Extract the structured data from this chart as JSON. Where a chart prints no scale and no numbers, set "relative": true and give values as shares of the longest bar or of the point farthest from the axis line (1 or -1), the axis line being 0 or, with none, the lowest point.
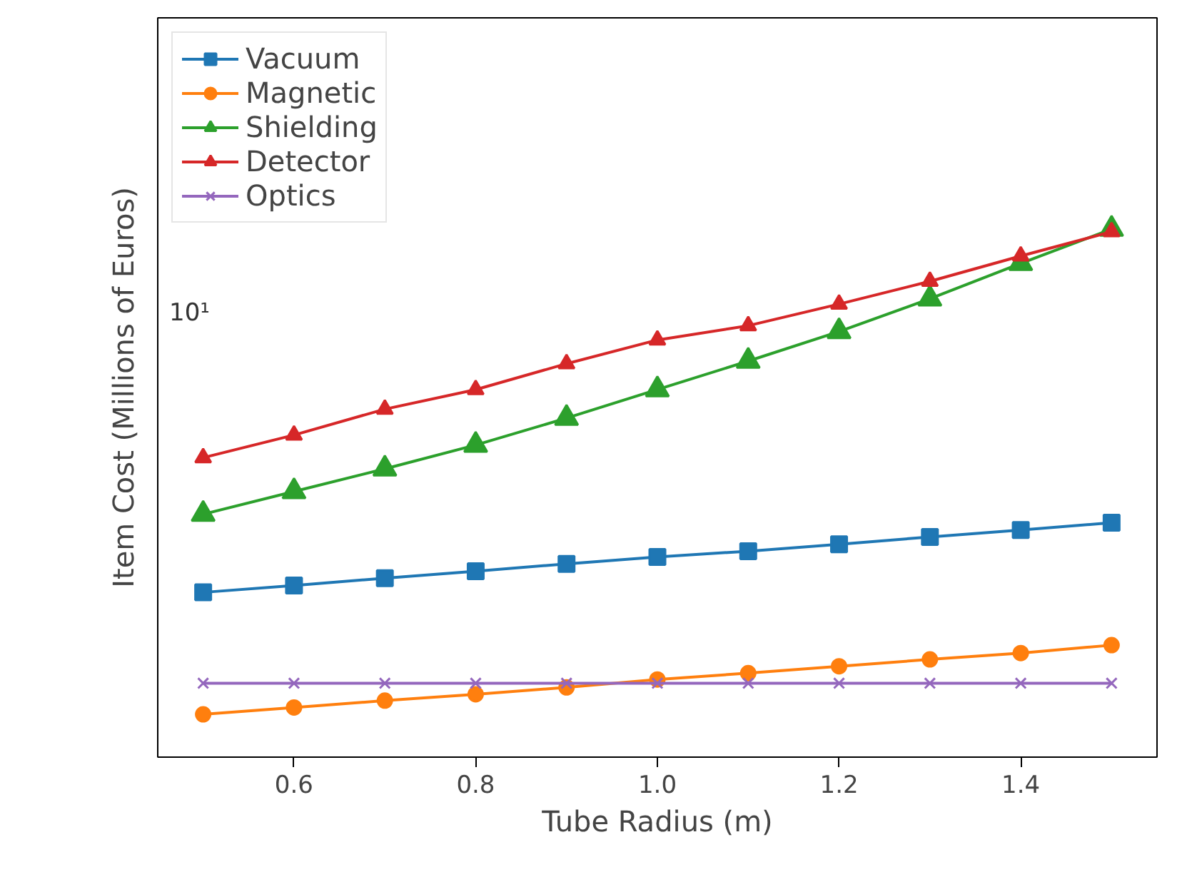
{
  "chart_data": {
    "type": "line",
    "xlabel": "Tube Radius (m)",
    "ylabel": "Item Cost (Millions of Euros)",
    "x": [
      0.5,
      0.6,
      0.7,
      0.8,
      0.9,
      1.0,
      1.1,
      1.2,
      1.3,
      1.4,
      1.5
    ],
    "relative": true,
    "series": [
      {
        "name": "Vacuum",
        "color": "#1f77b4",
        "marker": "square",
        "values": [
          0.312,
          0.325,
          0.339,
          0.352,
          0.366,
          0.379,
          0.39,
          0.403,
          0.417,
          0.43,
          0.444
        ]
      },
      {
        "name": "Magnetic",
        "color": "#ff7f0e",
        "marker": "circle",
        "values": [
          0.081,
          0.094,
          0.107,
          0.119,
          0.132,
          0.147,
          0.159,
          0.172,
          0.185,
          0.197,
          0.212
        ]
      },
      {
        "name": "Shielding",
        "color": "#2ca02c",
        "marker": "triangle",
        "values": [
          0.46,
          0.503,
          0.546,
          0.591,
          0.642,
          0.696,
          0.75,
          0.806,
          0.868,
          0.935,
          1
        ]
      },
      {
        "name": "Detector",
        "color": "#d62728",
        "marker": "triangle",
        "values": [
          0.567,
          0.61,
          0.659,
          0.696,
          0.745,
          0.79,
          0.817,
          0.858,
          0.901,
          0.949,
          0.995
        ]
      },
      {
        "name": "Optics",
        "color": "#9467bd",
        "marker": "x",
        "values": [
          0.14,
          0.14,
          0.14,
          0.14,
          0.14,
          0.14,
          0.14,
          0.14,
          0.14,
          0.14,
          0.14
        ]
      }
    ],
    "annotations": [
      "10¹"
    ],
    "xlim": [
      0.45,
      1.55
    ],
    "xticks": [
      {
        "value": 0.6,
        "label": "0.6"
      },
      {
        "value": 0.8,
        "label": "0.8"
      },
      {
        "value": 1.0,
        "label": "1.0"
      },
      {
        "value": 1.2,
        "label": "1.2"
      },
      {
        "value": 1.4,
        "label": "1.4"
      }
    ],
    "grid": false,
    "legend": "top left",
    "line_style": "solid"
  }
}
